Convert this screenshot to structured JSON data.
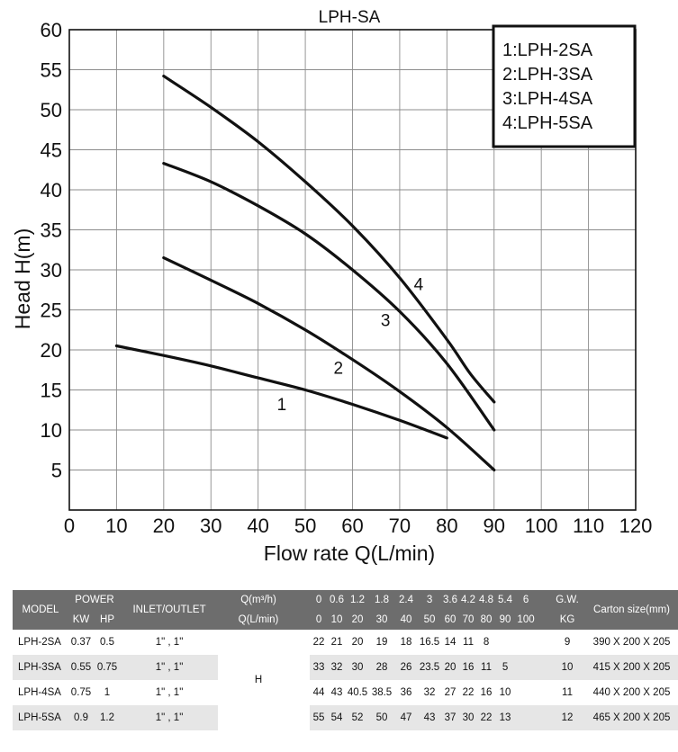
{
  "chart_data": {
    "type": "line",
    "title": "LPH-SA",
    "xlabel": "Flow rate Q(L/min)",
    "ylabel": "Head H(m)",
    "xlim": [
      0,
      120
    ],
    "ylim": [
      0,
      60
    ],
    "xticks": [
      "0",
      "10",
      "20",
      "30",
      "40",
      "50",
      "60",
      "70",
      "80",
      "90",
      "100",
      "110",
      "120"
    ],
    "yticks": [
      "5",
      "10",
      "15",
      "20",
      "25",
      "30",
      "35",
      "40",
      "45",
      "50",
      "55",
      "60"
    ],
    "grid": true,
    "legend": {
      "placement": "top-right",
      "entries": [
        "1:LPH-2SA",
        "2:LPH-3SA",
        "3:LPH-4SA",
        "4:LPH-5SA"
      ]
    },
    "series": [
      {
        "label": "1",
        "x": [
          10,
          20,
          30,
          40,
          50,
          60,
          70,
          80
        ],
        "y": [
          20.5,
          19.3,
          18,
          16.5,
          15,
          13.2,
          11.2,
          9
        ]
      },
      {
        "label": "2",
        "x": [
          20,
          30,
          40,
          50,
          60,
          70,
          80,
          90
        ],
        "y": [
          31.5,
          28.7,
          25.8,
          22.5,
          18.8,
          14.8,
          10.3,
          5
        ]
      },
      {
        "label": "3",
        "x": [
          20,
          30,
          40,
          50,
          60,
          70,
          80,
          90
        ],
        "y": [
          43.3,
          41,
          38,
          34.5,
          30,
          24.8,
          18.3,
          10
        ]
      },
      {
        "label": "4",
        "x": [
          20,
          30,
          40,
          50,
          60,
          70,
          80,
          85,
          90
        ],
        "y": [
          54.2,
          50.3,
          46,
          41,
          35.5,
          29,
          21.3,
          17,
          13.5
        ]
      }
    ]
  },
  "table": {
    "header": {
      "model": "MODEL",
      "power": "POWER",
      "kw": "KW",
      "hp": "HP",
      "inlet": "INLET/OUTLET",
      "q_m3h_label": "Q(m³/h)",
      "q_lmin_label": "Q(L/min)",
      "q_m3h": [
        "0",
        "0.6",
        "1.2",
        "1.8",
        "2.4",
        "3",
        "3.6",
        "4.2",
        "4.8",
        "5.4",
        "6"
      ],
      "q_lmin": [
        "0",
        "10",
        "20",
        "30",
        "40",
        "50",
        "60",
        "70",
        "80",
        "90",
        "100"
      ],
      "gw": "G.W.",
      "kg": "KG",
      "carton": "Carton size(mm)"
    },
    "h_label": "H",
    "rows": [
      {
        "model": "LPH-2SA",
        "kw": "0.37",
        "hp": "0.5",
        "inlet": "1\" , 1\"",
        "h": [
          "",
          "22",
          "21",
          "20",
          "19",
          "18",
          "16.5",
          "14",
          "11",
          "8",
          "",
          ""
        ],
        "gw": "9",
        "carton": "390 X 200 X 205"
      },
      {
        "model": "LPH-3SA",
        "kw": "0.55",
        "hp": "0.75",
        "inlet": "1\" , 1\"",
        "h": [
          "",
          "33",
          "32",
          "30",
          "28",
          "26",
          "23.5",
          "20",
          "16",
          "11",
          "5",
          ""
        ],
        "gw": "10",
        "carton": "415 X 200 X 205"
      },
      {
        "model": "LPH-4SA",
        "kw": "0.75",
        "hp": "1",
        "inlet": "1\" , 1\"",
        "h": [
          "",
          "44",
          "43",
          "40.5",
          "38.5",
          "36",
          "32",
          "27",
          "22",
          "16",
          "10",
          ""
        ],
        "gw": "11",
        "carton": "440 X 200 X 205"
      },
      {
        "model": "LPH-5SA",
        "kw": "0.9",
        "hp": "1.2",
        "inlet": "1\" , 1\"",
        "h": [
          "",
          "55",
          "54",
          "52",
          "50",
          "47",
          "43",
          "37",
          "30",
          "22",
          "13",
          ""
        ],
        "gw": "12",
        "carton": "465 X 200 X 205"
      }
    ]
  }
}
